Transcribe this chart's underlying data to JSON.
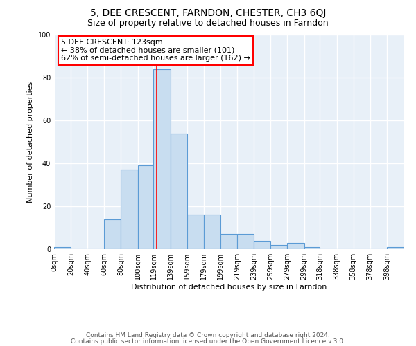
{
  "title": "5, DEE CRESCENT, FARNDON, CHESTER, CH3 6QJ",
  "subtitle": "Size of property relative to detached houses in Farndon",
  "xlabel": "Distribution of detached houses by size in Farndon",
  "ylabel": "Number of detached properties",
  "bar_color": "#c8ddf0",
  "bar_edge_color": "#5b9bd5",
  "background_color": "#e8f0f8",
  "grid_color": "#ffffff",
  "bin_labels": [
    "0sqm",
    "20sqm",
    "40sqm",
    "60sqm",
    "80sqm",
    "100sqm",
    "119sqm",
    "139sqm",
    "159sqm",
    "179sqm",
    "199sqm",
    "219sqm",
    "239sqm",
    "259sqm",
    "279sqm",
    "299sqm",
    "318sqm",
    "338sqm",
    "358sqm",
    "378sqm",
    "398sqm"
  ],
  "bar_heights": [
    1,
    0,
    0,
    14,
    37,
    39,
    84,
    54,
    16,
    16,
    7,
    7,
    4,
    2,
    3,
    1,
    0,
    0,
    0,
    0,
    1
  ],
  "bin_edges": [
    0,
    20,
    40,
    60,
    80,
    100,
    119,
    139,
    159,
    179,
    199,
    219,
    239,
    259,
    279,
    299,
    318,
    338,
    358,
    378,
    398,
    418
  ],
  "ylim": [
    0,
    100
  ],
  "yticks": [
    0,
    20,
    40,
    60,
    80,
    100
  ],
  "red_line_x": 123,
  "annotation_box_text": "5 DEE CRESCENT: 123sqm\n← 38% of detached houses are smaller (101)\n62% of semi-detached houses are larger (162) →",
  "footer_line1": "Contains HM Land Registry data © Crown copyright and database right 2024.",
  "footer_line2": "Contains public sector information licensed under the Open Government Licence v.3.0.",
  "title_fontsize": 10,
  "subtitle_fontsize": 9,
  "axis_label_fontsize": 8,
  "tick_fontsize": 7,
  "annotation_fontsize": 8,
  "footer_fontsize": 6.5
}
